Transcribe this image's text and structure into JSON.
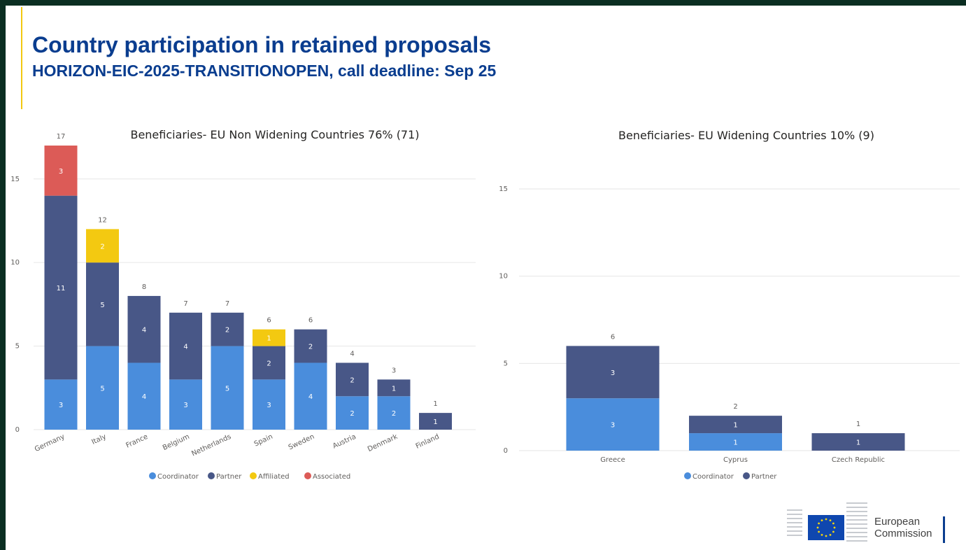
{
  "title": "Country participation in retained proposals",
  "subtitle": "HORIZON-EIC-2025-TRANSITIONOPEN, call deadline: Sep 25",
  "logo": {
    "line1": "European",
    "line2": "Commission"
  },
  "colors": {
    "Coordinator": "#4a8ddc",
    "Partner": "#485787",
    "Affiliated": "#f3c911",
    "Associated": "#dc5b57"
  },
  "chart_data": [
    {
      "type": "bar",
      "stacked": true,
      "title": "Beneficiaries- EU Non Widening Countries 76% (71)",
      "categories": [
        "Germany",
        "Italy",
        "France",
        "Belgium",
        "Netherlands",
        "Spain",
        "Sweden",
        "Austria",
        "Denmark",
        "Finland"
      ],
      "series": [
        {
          "name": "Coordinator",
          "values": [
            3,
            5,
            4,
            3,
            5,
            3,
            4,
            2,
            2,
            0
          ]
        },
        {
          "name": "Partner",
          "values": [
            11,
            5,
            4,
            4,
            2,
            2,
            2,
            2,
            1,
            1
          ]
        },
        {
          "name": "Affiliated",
          "values": [
            0,
            2,
            0,
            0,
            0,
            1,
            0,
            0,
            0,
            0
          ]
        },
        {
          "name": "Associated",
          "values": [
            3,
            0,
            0,
            0,
            0,
            0,
            0,
            0,
            0,
            0
          ]
        }
      ],
      "totals": [
        17,
        12,
        8,
        7,
        7,
        6,
        6,
        4,
        3,
        1
      ],
      "ylim": [
        0,
        17
      ],
      "yticks": [
        0,
        5,
        10,
        15
      ],
      "grid": true,
      "legend": "bottom-center"
    },
    {
      "type": "bar",
      "stacked": true,
      "title": "Beneficiaries- EU Widening Countries 10% (9)",
      "categories": [
        "Greece",
        "Cyprus",
        "Czech Republic"
      ],
      "series": [
        {
          "name": "Coordinator",
          "values": [
            3,
            1,
            0
          ]
        },
        {
          "name": "Partner",
          "values": [
            3,
            1,
            1
          ]
        }
      ],
      "totals": [
        6,
        2,
        1
      ],
      "ylim": [
        0,
        15
      ],
      "yticks": [
        0,
        5,
        10,
        15
      ],
      "grid": true,
      "legend": "bottom-center"
    }
  ]
}
